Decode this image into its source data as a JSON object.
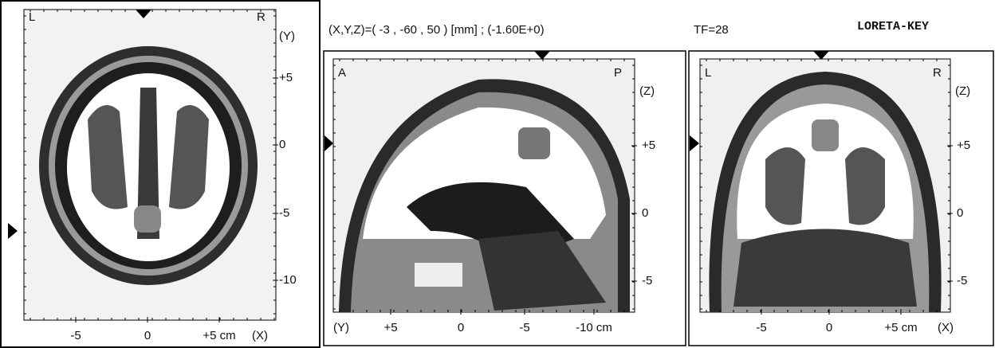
{
  "header": {
    "coordinates": "(X,Y,Z)=( -3 , -60 , 50 ) [mm] ; (-1.60E+0)",
    "frame": "TF=28",
    "app": "LORETA-KEY"
  },
  "panels": [
    {
      "corner_left": "L",
      "corner_right": "R",
      "side_axis": "(Y)",
      "side_ticks": [
        "+5",
        "0",
        "-5",
        "-10"
      ],
      "bottom_axis": "(X)",
      "bottom_ticks": [
        "-5",
        "0",
        "+5 cm"
      ]
    },
    {
      "corner_left": "A",
      "corner_right": "P",
      "side_axis": "(Z)",
      "side_ticks": [
        "+5",
        "0",
        "-5"
      ],
      "bottom_axis": "(Y)",
      "bottom_ticks": [
        "+5",
        "0",
        "-5",
        "-10 cm"
      ]
    },
    {
      "corner_left": "L",
      "corner_right": "R",
      "side_axis": "(Z)",
      "side_ticks": [
        "+5",
        "0",
        "-5"
      ],
      "bottom_axis": "(X)",
      "bottom_ticks": [
        "-5",
        "0",
        "+5 cm"
      ]
    }
  ]
}
